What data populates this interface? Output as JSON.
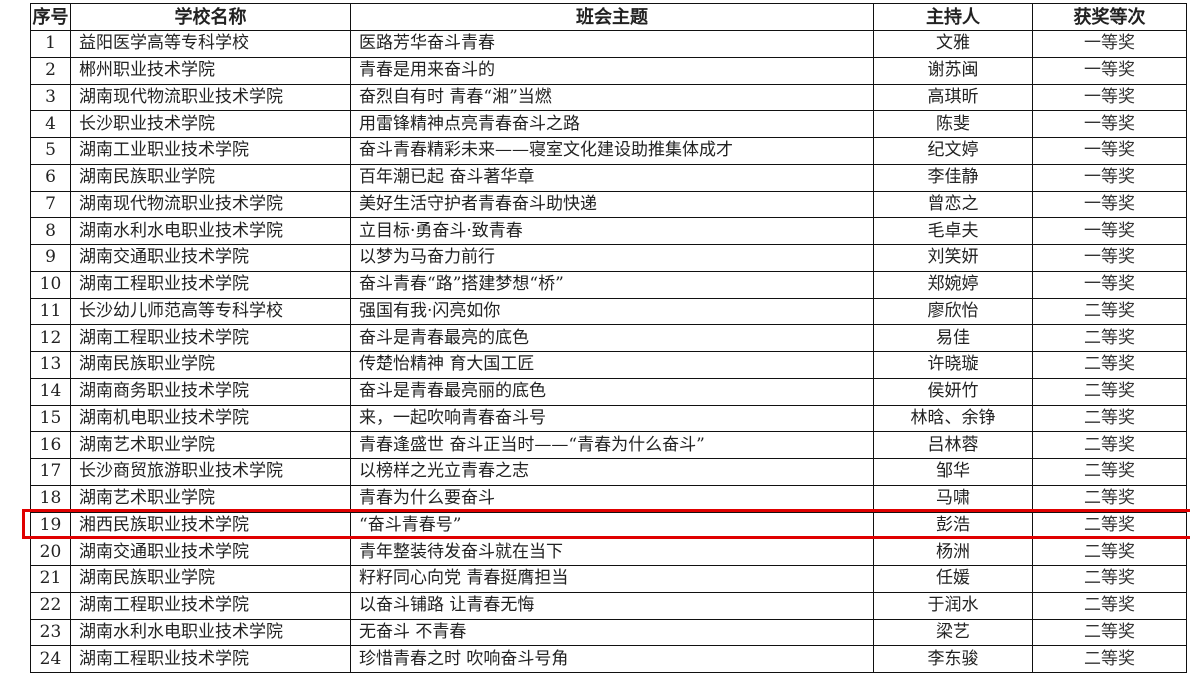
{
  "headers": [
    "序号",
    "学校名称",
    "班会主题",
    "主持人",
    "获奖等次"
  ],
  "highlight_color": "#e00000",
  "highlighted_row": "19",
  "rows": [
    {
      "no": "1",
      "school": "益阳医学高等专科学校",
      "theme": "医路芳华奋斗青春",
      "host": "文雅",
      "award": "一等奖"
    },
    {
      "no": "2",
      "school": "郴州职业技术学院",
      "theme": "青春是用来奋斗的",
      "host": "谢苏闽",
      "award": "一等奖"
    },
    {
      "no": "3",
      "school": "湖南现代物流职业技术学院",
      "theme": "奋烈自有时 青春“湘”当燃",
      "host": "高琪昕",
      "award": "一等奖"
    },
    {
      "no": "4",
      "school": "长沙职业技术学院",
      "theme": "用雷锋精神点亮青春奋斗之路",
      "host": "陈斐",
      "award": "一等奖"
    },
    {
      "no": "5",
      "school": "湖南工业职业技术学院",
      "theme": "奋斗青春精彩未来——寝室文化建设助推集体成才",
      "host": "纪文婷",
      "award": "一等奖"
    },
    {
      "no": "6",
      "school": "湖南民族职业学院",
      "theme": "百年潮已起 奋斗著华章",
      "host": "李佳静",
      "award": "一等奖"
    },
    {
      "no": "7",
      "school": "湖南现代物流职业技术学院",
      "theme": "美好生活守护者青春奋斗助快递",
      "host": "曾恋之",
      "award": "一等奖"
    },
    {
      "no": "8",
      "school": "湖南水利水电职业技术学院",
      "theme": "立目标·勇奋斗·致青春",
      "host": "毛卓夫",
      "award": "一等奖"
    },
    {
      "no": "9",
      "school": "湖南交通职业技术学院",
      "theme": "以梦为马奋力前行",
      "host": "刘笑妍",
      "award": "一等奖"
    },
    {
      "no": "10",
      "school": "湖南工程职业技术学院",
      "theme": "奋斗青春“路”搭建梦想“桥”",
      "host": "郑婉婷",
      "award": "一等奖"
    },
    {
      "no": "11",
      "school": "长沙幼儿师范高等专科学校",
      "theme": "强国有我·闪亮如你",
      "host": "廖欣怡",
      "award": "二等奖"
    },
    {
      "no": "12",
      "school": "湖南工程职业技术学院",
      "theme": "奋斗是青春最亮的底色",
      "host": "易佳",
      "award": "二等奖"
    },
    {
      "no": "13",
      "school": "湖南民族职业学院",
      "theme": "传楚怡精神 育大国工匠",
      "host": "许晓璇",
      "award": "二等奖"
    },
    {
      "no": "14",
      "school": "湖南商务职业技术学院",
      "theme": "奋斗是青春最亮丽的底色",
      "host": "侯妍竹",
      "award": "二等奖"
    },
    {
      "no": "15",
      "school": "湖南机电职业技术学院",
      "theme": "来，一起吹响青春奋斗号",
      "host": "林晗、余铮",
      "award": "二等奖"
    },
    {
      "no": "16",
      "school": "湖南艺术职业学院",
      "theme": "青春逢盛世  奋斗正当时——“青春为什么奋斗”",
      "host": "吕林蓉",
      "award": "二等奖"
    },
    {
      "no": "17",
      "school": "长沙商贸旅游职业技术学院",
      "theme": "以榜样之光立青春之志",
      "host": "邹华",
      "award": "二等奖"
    },
    {
      "no": "18",
      "school": "湖南艺术职业学院",
      "theme": "青春为什么要奋斗",
      "host": "马啸",
      "award": "二等奖"
    },
    {
      "no": "19",
      "school": "湘西民族职业技术学院",
      "theme": "“奋斗青春号”",
      "host": "彭浩",
      "award": "二等奖"
    },
    {
      "no": "20",
      "school": "湖南交通职业技术学院",
      "theme": "青年整装待发奋斗就在当下",
      "host": "杨洲",
      "award": "二等奖"
    },
    {
      "no": "21",
      "school": "湖南民族职业学院",
      "theme": "籽籽同心向党 青春挺膺担当",
      "host": "任媛",
      "award": "二等奖"
    },
    {
      "no": "22",
      "school": "湖南工程职业技术学院",
      "theme": "以奋斗铺路 让青春无悔",
      "host": "于润水",
      "award": "二等奖"
    },
    {
      "no": "23",
      "school": "湖南水利水电职业技术学院",
      "theme": "无奋斗 不青春",
      "host": "梁艺",
      "award": "二等奖"
    },
    {
      "no": "24",
      "school": "湖南工程职业技术学院",
      "theme": "珍惜青春之时 吹响奋斗号角",
      "host": "李东骏",
      "award": "二等奖"
    }
  ]
}
